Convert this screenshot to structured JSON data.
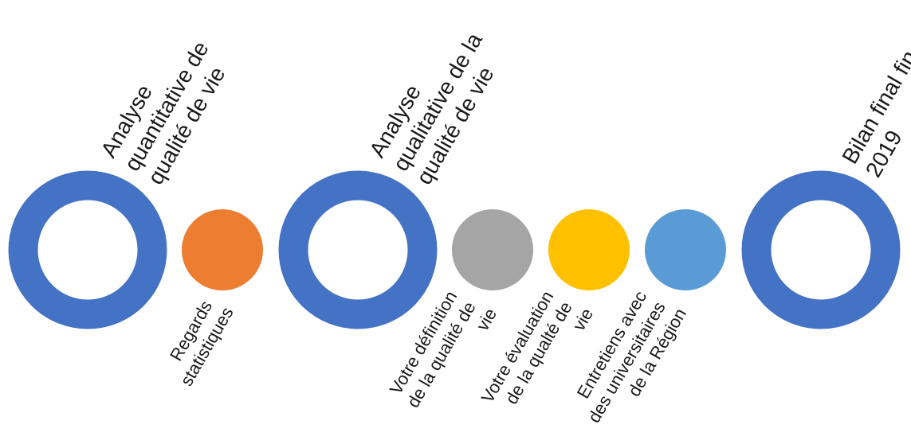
{
  "colors": {
    "milestone_ring": "#4472C4",
    "regards": "#ED7D31",
    "definition": "#A5A5A5",
    "evaluation": "#FFC000",
    "entretiens": "#5B9BD5",
    "text": "#1a1a1a"
  },
  "milestones": [
    {
      "id": "quantitative",
      "lines": [
        "Analyse",
        "quantitative de",
        "qualité de vie"
      ]
    },
    {
      "id": "qualitative",
      "lines": [
        "Analyse",
        "qualitative de la",
        "qualité de vie"
      ]
    },
    {
      "id": "bilan",
      "lines": [
        "Bilan final fin",
        "2019"
      ]
    }
  ],
  "steps": [
    {
      "id": "regards",
      "lines": [
        "Regards",
        "statistiques"
      ]
    },
    {
      "id": "definition",
      "lines": [
        "Votre définition",
        "de la qualité de",
        "vie"
      ]
    },
    {
      "id": "evaluation",
      "lines": [
        "Votre évaluation",
        "de la qualté de",
        "vie"
      ]
    },
    {
      "id": "entretiens",
      "lines": [
        "Entretiens avec",
        "des universitaires",
        "de la Région"
      ]
    }
  ]
}
